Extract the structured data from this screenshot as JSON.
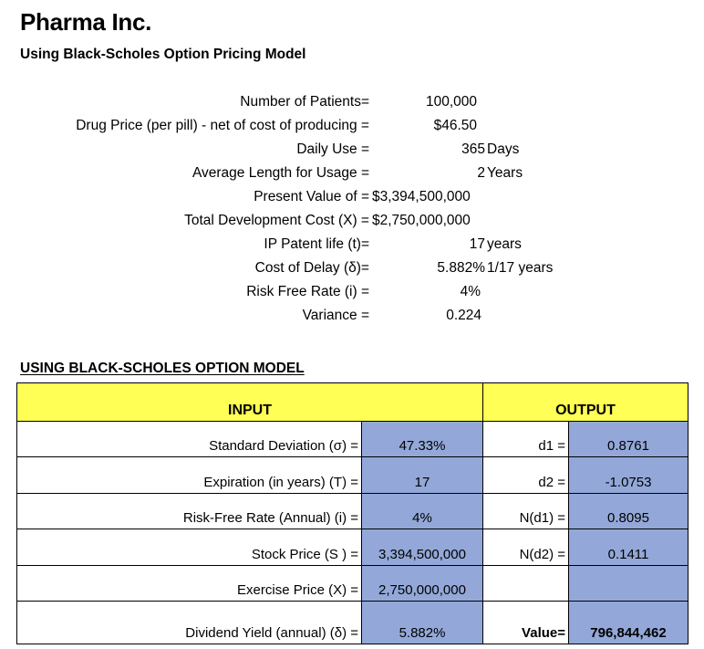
{
  "header": {
    "title": "Pharma Inc.",
    "subtitle": "Using Black-Scholes Option Pricing Model"
  },
  "params": [
    {
      "label": "Number of Patients=",
      "value": "100,000",
      "unit": ""
    },
    {
      "label": "Drug Price (per pill) - net of cost of producing =",
      "value": "$46.50",
      "unit": ""
    },
    {
      "label": "Daily Use =",
      "value": "365",
      "unit": "Days"
    },
    {
      "label": "Average  Length for Usage =",
      "value": "2",
      "unit": "Years"
    },
    {
      "label": "Present Value of =",
      "value": "$3,394,500,000",
      "unit": ""
    },
    {
      "label": "Total Development Cost  (X) =",
      "value": "$2,750,000,000",
      "unit": ""
    },
    {
      "label": "IP Patent life  (t)=",
      "value": "17",
      "unit": "years"
    },
    {
      "label": "Cost of Delay  (δ)=",
      "value": "5.882%",
      "unit": "1/17 years"
    },
    {
      "label": "Risk Free Rate (i) =",
      "value": "4%",
      "unit": ""
    },
    {
      "label": "Variance =",
      "value": "0.224",
      "unit": ""
    }
  ],
  "section_title": "USING BLACK-SCHOLES OPTION MODEL",
  "table": {
    "input_header": "INPUT",
    "output_header": "OUTPUT",
    "inputs": [
      {
        "label": "Standard Deviation  (σ) =",
        "value": "47.33%"
      },
      {
        "label": "Expiration (in years)  (T) =",
        "value": "17"
      },
      {
        "label": "Risk-Free Rate (Annual) (i) =",
        "value": "4%"
      },
      {
        "label": "Stock Price (S ) =",
        "value": "3,394,500,000"
      },
      {
        "label": "Exercise Price (X) =",
        "value": "2,750,000,000"
      },
      {
        "label": "Dividend Yield (annual) (δ) =",
        "value": "5.882%"
      }
    ],
    "outputs": [
      {
        "label": "d1 =",
        "value": "0.8761"
      },
      {
        "label": "d2 =",
        "value": "-1.0753"
      },
      {
        "label": "N(d1) =",
        "value": "0.8095"
      },
      {
        "label": "N(d2) =",
        "value": "0.1411"
      },
      {
        "label": "",
        "value": ""
      },
      {
        "label": "Value=",
        "value": "796,844,462"
      }
    ]
  },
  "colors": {
    "header_fill": "#ffff55",
    "value_fill": "#93a8d8"
  }
}
